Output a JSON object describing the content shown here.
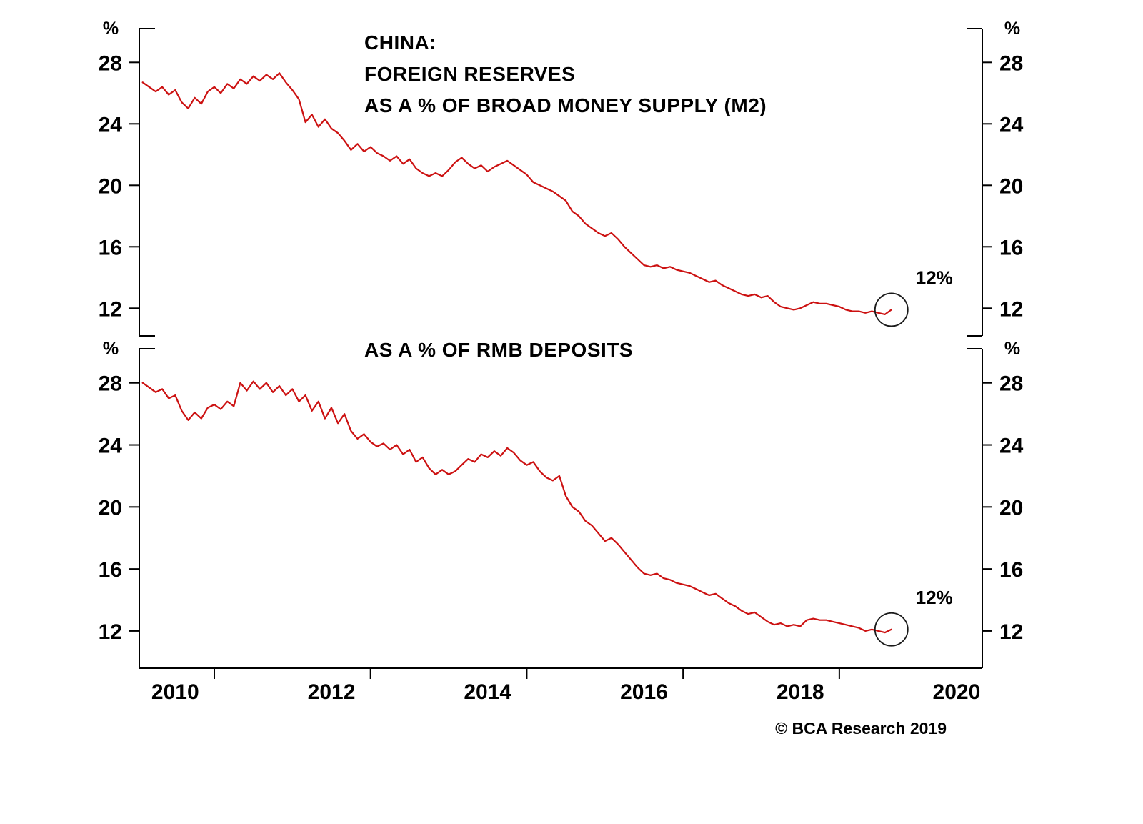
{
  "page": {
    "background": "#ffffff"
  },
  "footer": {
    "copyright": "© BCA Research 2019"
  },
  "x_axis": {
    "xlim": [
      2009.54,
      2020.33
    ],
    "labels": [
      "2010",
      "2012",
      "2014",
      "2016",
      "2018",
      "2020"
    ],
    "label_positions": [
      2010,
      2012,
      2014,
      2016,
      2018,
      2020
    ],
    "tick_positions": [
      2010.5,
      2012.5,
      2014.5,
      2016.5,
      2018.5
    ]
  },
  "chart_data": [
    {
      "type": "line",
      "panel": "m2",
      "title_lines": [
        "CHINA:",
        "FOREIGN RESERVES",
        "AS A % OF BROAD MONEY SUPPLY (M2)"
      ],
      "unit_label": "%",
      "line_color": "#cc1111",
      "grid": false,
      "legend": "none",
      "yticks": [
        12,
        16,
        20,
        24,
        28
      ],
      "ylim": [
        10.2,
        30.2
      ],
      "x_start": 2009.5833,
      "x_step_months": 1,
      "annotation": {
        "label": "12%",
        "value": 12
      },
      "values": [
        26.7,
        26.4,
        26.1,
        26.4,
        25.9,
        26.2,
        25.4,
        25.0,
        25.7,
        25.3,
        26.1,
        26.4,
        26.0,
        26.6,
        26.3,
        26.9,
        26.6,
        27.1,
        26.8,
        27.2,
        26.9,
        27.3,
        26.7,
        26.2,
        25.6,
        24.1,
        24.6,
        23.8,
        24.3,
        23.7,
        23.4,
        22.9,
        22.3,
        22.7,
        22.2,
        22.5,
        22.1,
        21.9,
        21.6,
        21.9,
        21.4,
        21.7,
        21.1,
        20.8,
        20.6,
        20.8,
        20.6,
        21.0,
        21.5,
        21.8,
        21.4,
        21.1,
        21.3,
        20.9,
        21.2,
        21.4,
        21.6,
        21.3,
        21.0,
        20.7,
        20.2,
        20.0,
        19.8,
        19.6,
        19.3,
        19.0,
        18.3,
        18.0,
        17.5,
        17.2,
        16.9,
        16.7,
        16.9,
        16.5,
        16.0,
        15.6,
        15.2,
        14.8,
        14.7,
        14.8,
        14.6,
        14.7,
        14.5,
        14.4,
        14.3,
        14.1,
        13.9,
        13.7,
        13.8,
        13.5,
        13.3,
        13.1,
        12.9,
        12.8,
        12.9,
        12.7,
        12.8,
        12.4,
        12.1,
        12.0,
        11.9,
        12.0,
        12.2,
        12.4,
        12.3,
        12.3,
        12.2,
        12.1,
        11.9,
        11.8,
        11.8,
        11.7,
        11.8,
        11.7,
        11.6,
        11.9
      ]
    },
    {
      "type": "line",
      "panel": "rmb",
      "title_lines": [
        "AS A % OF RMB DEPOSITS"
      ],
      "unit_label": "%",
      "line_color": "#cc1111",
      "grid": false,
      "legend": "none",
      "yticks": [
        12,
        16,
        20,
        24,
        28
      ],
      "ylim": [
        9.6,
        30.2
      ],
      "x_start": 2009.5833,
      "x_step_months": 1,
      "annotation": {
        "label": "12%",
        "value": 12
      },
      "values": [
        28.0,
        27.7,
        27.4,
        27.6,
        27.0,
        27.2,
        26.2,
        25.6,
        26.1,
        25.7,
        26.4,
        26.6,
        26.3,
        26.8,
        26.5,
        28.0,
        27.5,
        28.1,
        27.6,
        28.0,
        27.4,
        27.8,
        27.2,
        27.6,
        26.8,
        27.2,
        26.2,
        26.8,
        25.7,
        26.4,
        25.4,
        26.0,
        24.9,
        24.4,
        24.7,
        24.2,
        23.9,
        24.1,
        23.7,
        24.0,
        23.4,
        23.7,
        22.9,
        23.2,
        22.5,
        22.1,
        22.4,
        22.1,
        22.3,
        22.7,
        23.1,
        22.9,
        23.4,
        23.2,
        23.6,
        23.3,
        23.8,
        23.5,
        23.0,
        22.7,
        22.9,
        22.3,
        21.9,
        21.7,
        22.0,
        20.7,
        20.0,
        19.7,
        19.1,
        18.8,
        18.3,
        17.8,
        18.0,
        17.6,
        17.1,
        16.6,
        16.1,
        15.7,
        15.6,
        15.7,
        15.4,
        15.3,
        15.1,
        15.0,
        14.9,
        14.7,
        14.5,
        14.3,
        14.4,
        14.1,
        13.8,
        13.6,
        13.3,
        13.1,
        13.2,
        12.9,
        12.6,
        12.4,
        12.5,
        12.3,
        12.4,
        12.3,
        12.7,
        12.8,
        12.7,
        12.7,
        12.6,
        12.5,
        12.4,
        12.3,
        12.2,
        12.0,
        12.1,
        12.0,
        11.9,
        12.1
      ]
    }
  ]
}
